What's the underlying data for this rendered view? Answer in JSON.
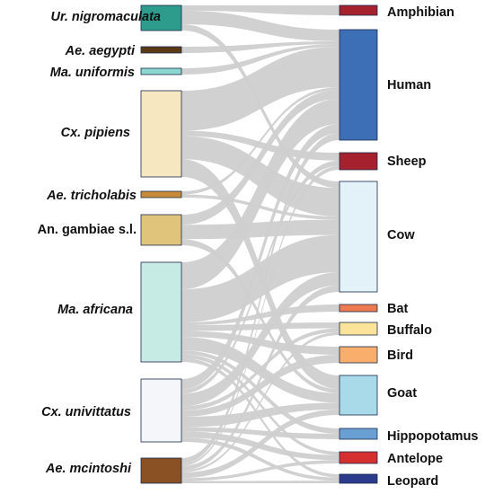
{
  "mosquitoes": [
    {
      "id": "ur",
      "label": "Ur. nigromaculata",
      "color": "#2e9c8c"
    },
    {
      "id": "aeae",
      "label": "Ae. aegypti",
      "color": "#5a3a14"
    },
    {
      "id": "mau",
      "label": "Ma. uniformis",
      "color": "#8ad6d0"
    },
    {
      "id": "cxp",
      "label": "Cx. pipiens",
      "color": "#f6e7c1"
    },
    {
      "id": "aet",
      "label": "Ae. tricholabis",
      "color": "#c88a38"
    },
    {
      "id": "ang",
      "label": "An. gambiae s.l.",
      "color": "#e0c47c"
    },
    {
      "id": "maa",
      "label": "Ma. africana",
      "color": "#c6ebe4"
    },
    {
      "id": "cxu",
      "label": "Cx. univittatus",
      "color": "#f4f6f9"
    },
    {
      "id": "aem",
      "label": "Ae. mcintoshi",
      "color": "#8a5124"
    }
  ],
  "hosts": [
    {
      "id": "amphibian",
      "label": "Amphibian",
      "color": "#a5212e"
    },
    {
      "id": "human",
      "label": "Human",
      "color": "#3d6fb6"
    },
    {
      "id": "sheep",
      "label": "Sheep",
      "color": "#a5212e"
    },
    {
      "id": "cow",
      "label": "Cow",
      "color": "#e3f2f9"
    },
    {
      "id": "bat",
      "label": "Bat",
      "color": "#ee7a52"
    },
    {
      "id": "buffalo",
      "label": "Buffalo",
      "color": "#fbe39a"
    },
    {
      "id": "bird",
      "label": "Bird",
      "color": "#f9ae6c"
    },
    {
      "id": "goat",
      "label": "Goat",
      "color": "#a9daea"
    },
    {
      "id": "hippopotamus",
      "label": "Hippopotamus",
      "color": "#6a9fd4"
    },
    {
      "id": "antelope",
      "label": "Antelope",
      "color": "#d62f2f"
    },
    {
      "id": "leopard",
      "label": "Leopard",
      "color": "#2c3b8c"
    }
  ],
  "links": [
    [
      "ur",
      "amphibian",
      5
    ],
    [
      "ur",
      "human",
      13
    ],
    [
      "ur",
      "cow",
      6
    ],
    [
      "aeae",
      "human",
      3
    ],
    [
      "mau",
      "human",
      3
    ],
    [
      "cxp",
      "human",
      45
    ],
    [
      "cxp",
      "sheep",
      6
    ],
    [
      "cxp",
      "cow",
      26
    ],
    [
      "cxp",
      "goat",
      20
    ],
    [
      "aet",
      "human",
      3
    ],
    [
      "aet",
      "cow",
      3
    ],
    [
      "ang",
      "human",
      10
    ],
    [
      "ang",
      "cow",
      14
    ],
    [
      "ang",
      "goat",
      6
    ],
    [
      "maa",
      "human",
      28
    ],
    [
      "maa",
      "cow",
      34
    ],
    [
      "maa",
      "goat",
      14
    ],
    [
      "maa",
      "bat",
      3
    ],
    [
      "maa",
      "buffalo",
      6
    ],
    [
      "maa",
      "bird",
      6
    ],
    [
      "maa",
      "hippopotamus",
      4
    ],
    [
      "maa",
      "antelope",
      4
    ],
    [
      "maa",
      "leopard",
      4
    ],
    [
      "cxu",
      "human",
      10
    ],
    [
      "cxu",
      "sheep",
      4
    ],
    [
      "cxu",
      "cow",
      12
    ],
    [
      "cxu",
      "bird",
      6
    ],
    [
      "cxu",
      "goat",
      10
    ],
    [
      "cxu",
      "hippopotamus",
      4
    ],
    [
      "cxu",
      "antelope",
      6
    ],
    [
      "cxu",
      "leopard",
      4
    ],
    [
      "cxu",
      "buffalo",
      4
    ],
    [
      "aem",
      "human",
      8
    ],
    [
      "aem",
      "sheep",
      3
    ],
    [
      "aem",
      "cow",
      6
    ],
    [
      "aem",
      "goat",
      8
    ],
    [
      "aem",
      "antelope",
      4
    ],
    [
      "aem",
      "leopard",
      3
    ],
    [
      "aem",
      "buffalo",
      3
    ]
  ],
  "link_color": "#cfcfcf"
}
